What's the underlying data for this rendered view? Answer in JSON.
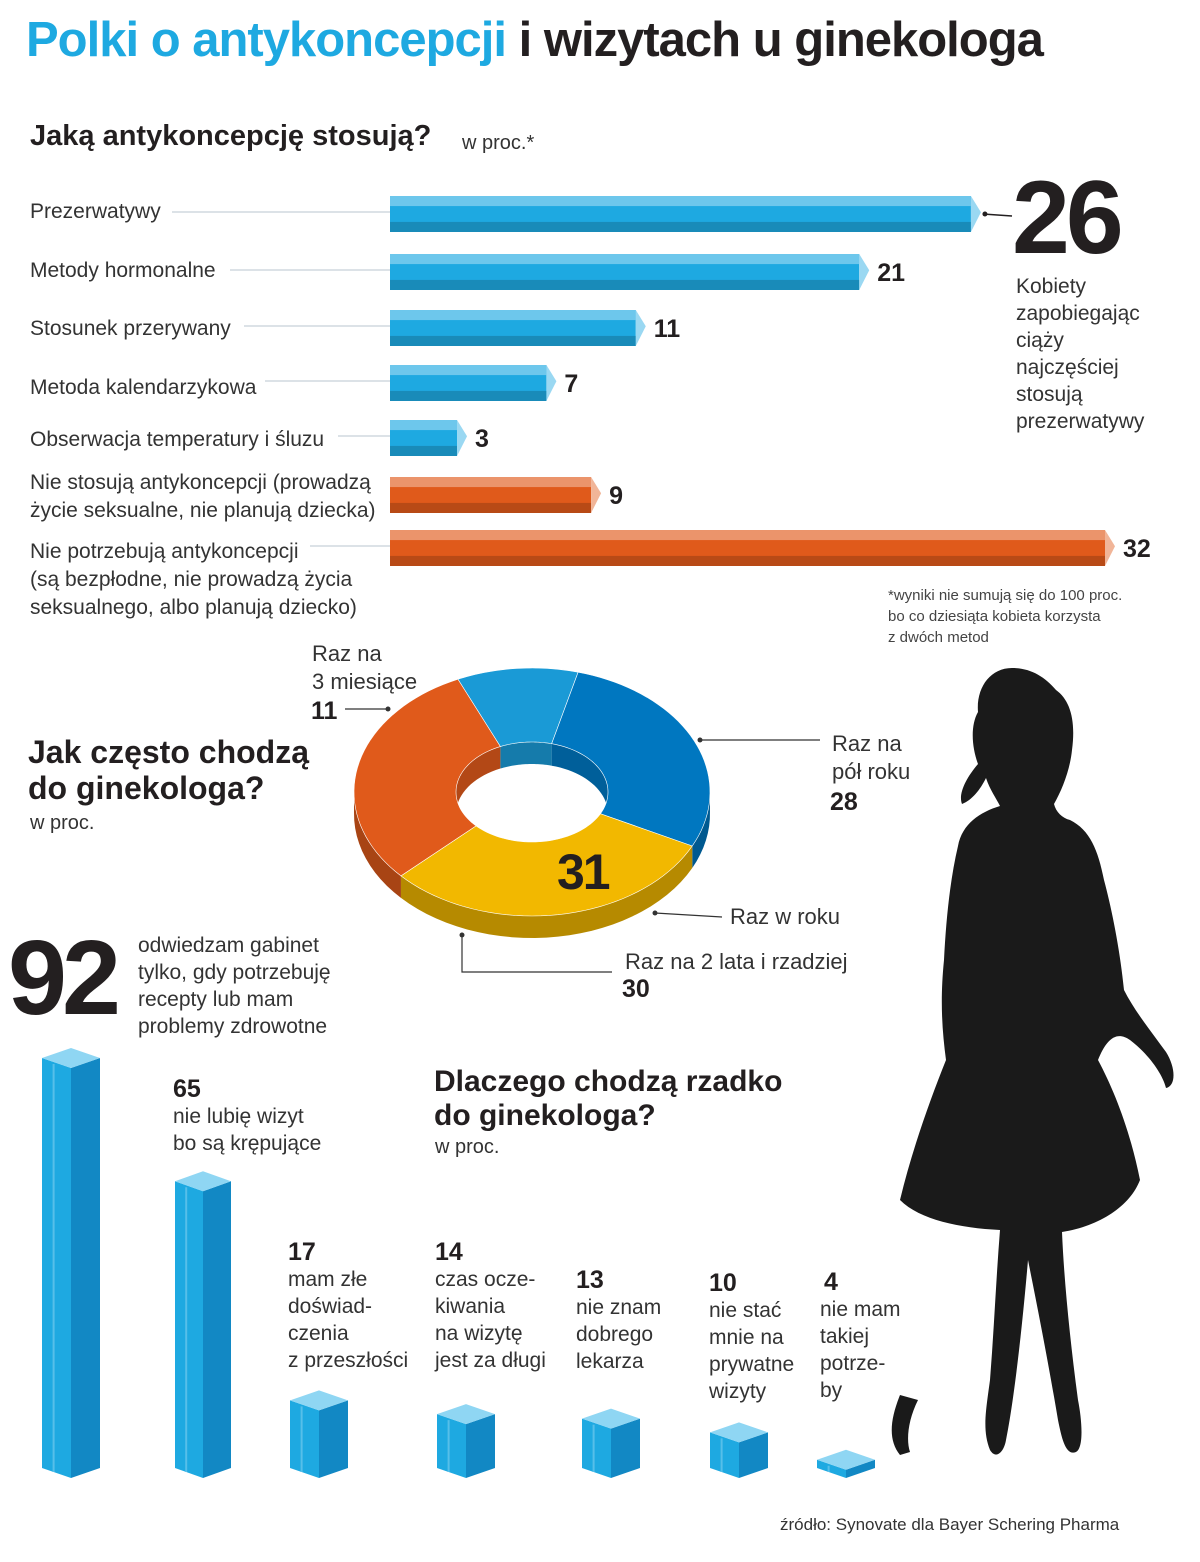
{
  "title": {
    "part1": "Polki o antykoncepcji",
    "part2": "i wizytach u ginekologa"
  },
  "colors": {
    "blue": "#1ea9e1",
    "orange": "#e05a1b",
    "yellow": "#f2b800",
    "darkblue": "#0077c0",
    "midblue": "#1a9ad6",
    "text": "#231f20",
    "silhouette": "#1a1a1a"
  },
  "contraception": {
    "heading": "Jaką antykoncepcję stosują?",
    "unit": "w proc.*",
    "highlight": {
      "value": "26",
      "text": [
        "Kobiety",
        "zapobiegając",
        "ciąży",
        "najczęściej",
        "stosują",
        "prezerwatywy"
      ]
    },
    "footnote": [
      "*wyniki nie sumują się do 100 proc.",
      "bo co dziesiąta kobieta korzysta",
      "z dwóch metod"
    ]
  },
  "frequency": {
    "heading": [
      "Jak często chodzą",
      "do ginekologa?"
    ],
    "unit": "w proc.",
    "center_value": "31",
    "labels": {
      "quarter": [
        "Raz na",
        "3 miesiące"
      ],
      "quarter_value": "11",
      "half": [
        "Raz na",
        "pół roku"
      ],
      "half_value": "28",
      "year": "Raz w roku",
      "rare": "Raz na 2 lata i rzadziej",
      "rare_value": "30"
    }
  },
  "reasons": {
    "heading": [
      "Dlaczego chodzą rzadko",
      "do ginekologa?"
    ],
    "unit": "w proc.",
    "big": {
      "value": "92",
      "text": [
        "odwiedzam gabinet",
        "tylko, gdy potrzebuję",
        "recepty lub mam",
        "problemy zdrowotne"
      ]
    },
    "b65": {
      "value": "65",
      "text": [
        "nie lubię wizyt",
        "bo są krępujące"
      ]
    },
    "b17": {
      "value": "17",
      "text": [
        "mam złe",
        "doświad-",
        "czenia",
        "z przeszłości"
      ]
    },
    "b14": {
      "value": "14",
      "text": [
        "czas ocze-",
        "kiwania",
        "na wizytę",
        "jest za długi"
      ]
    },
    "b13": {
      "value": "13",
      "text": [
        "nie znam",
        "dobrego",
        "lekarza"
      ]
    },
    "b10": {
      "value": "10",
      "text": [
        "nie stać",
        "mnie na",
        "prywatne",
        "wizyty"
      ]
    },
    "b4": {
      "value": "4",
      "text": [
        "nie mam",
        "takiej",
        "potrze-",
        "by"
      ]
    }
  },
  "source": "źródło: Synovate dla Bayer Schering Pharma",
  "chart_data": [
    {
      "type": "bar",
      "orientation": "horizontal",
      "title": "Jaką antykoncepcję stosują?",
      "unit": "w proc.*",
      "categories": [
        "Prezerwatywy",
        "Metody hormonalne",
        "Stosunek przerywany",
        "Metoda kalendarzykowa",
        "Obserwacja temperatury i śluzu",
        "Nie stosują antykoncepcji (prowadzą życie seksualne, nie planują dziecka)",
        "Nie potrzebują antykoncepcji (są bezpłodne, nie prowadzą życia seksualnego, albo planują dziecko)"
      ],
      "label_lines": [
        [
          "Prezerwatywy"
        ],
        [
          "Metody hormonalne"
        ],
        [
          "Stosunek przerywany"
        ],
        [
          "Metoda kalendarzykowa"
        ],
        [
          "Obserwacja temperatury i śluzu"
        ],
        [
          "Nie stosują antykoncepcji (prowadzą",
          "życie seksualne, nie planują dziecka)"
        ],
        [
          "Nie potrzebują antykoncepcji",
          "(są bezpłodne, nie prowadzą życia",
          "seksualnego, albo planują dziecko)"
        ]
      ],
      "values": [
        26,
        21,
        11,
        7,
        3,
        9,
        32
      ],
      "colors": [
        "#1ea9e1",
        "#1ea9e1",
        "#1ea9e1",
        "#1ea9e1",
        "#1ea9e1",
        "#e05a1b",
        "#e05a1b"
      ],
      "xlim": [
        0,
        32
      ]
    },
    {
      "type": "pie",
      "style": "donut-3d",
      "title": "Jak często chodzą do ginekologa?",
      "unit": "w proc.",
      "labels": [
        "Raz na 3 miesiące",
        "Raz na pół roku",
        "Raz w roku",
        "Raz na 2 lata i rzadziej"
      ],
      "values": [
        11,
        28,
        31,
        30
      ],
      "colors": [
        "#1a9ad6",
        "#0077c0",
        "#f2b800",
        "#e05a1b"
      ]
    },
    {
      "type": "bar",
      "style": "3d-columns",
      "title": "Dlaczego chodzą rzadko do ginekologa?",
      "unit": "w proc.",
      "categories": [
        "odwiedzam gabinet tylko, gdy potrzebuję recepty lub mam problemy zdrowotne",
        "nie lubię wizyt bo są krępujące",
        "mam złe doświadczenia z przeszłości",
        "czas oczekiwania na wizytę jest za długi",
        "nie znam dobrego lekarza",
        "nie stać mnie na prywatne wizyty",
        "nie mam takiej potrzeby"
      ],
      "values": [
        92,
        65,
        17,
        14,
        13,
        10,
        4
      ],
      "ylim": [
        0,
        92
      ]
    }
  ]
}
